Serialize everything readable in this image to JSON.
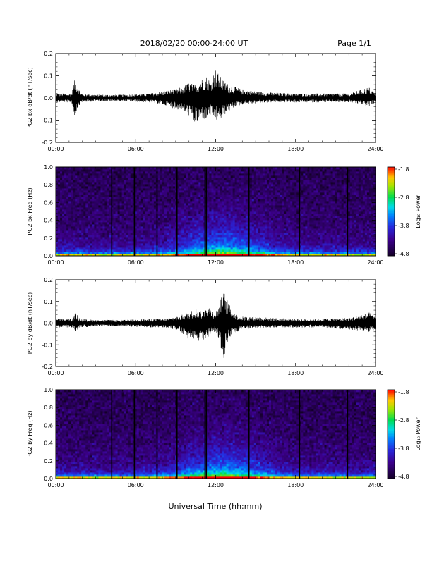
{
  "header": {
    "title": "2018/02/20  00:00-24:00 UT",
    "page": "Page 1/1"
  },
  "x_axis": {
    "label": "Universal Time (hh:mm)",
    "ticks": [
      "00:00",
      "06:00",
      "12:00",
      "18:00",
      "24:00"
    ],
    "range_hours": [
      0,
      24
    ]
  },
  "chart_data": [
    {
      "type": "line",
      "ylabel": "PG2 bx dB/dt (nT/sec)",
      "ylim": [
        -0.2,
        0.2
      ],
      "yticks": [
        "0.2",
        "0.1",
        "0.0",
        "-0.1",
        "-0.2"
      ],
      "x_unit": "hours UT",
      "envelope": {
        "x": [
          0,
          1.2,
          1.4,
          1.6,
          1.9,
          3,
          5,
          7,
          8,
          9,
          9.5,
          10,
          10.5,
          11,
          11.3,
          11.6,
          12,
          12.3,
          12.6,
          13,
          13.5,
          14,
          15,
          16,
          18,
          20,
          22,
          23.5,
          24
        ],
        "upper": [
          0.02,
          0.02,
          0.08,
          0.06,
          0.02,
          0.015,
          0.015,
          0.02,
          0.03,
          0.04,
          0.05,
          0.07,
          0.06,
          0.09,
          0.1,
          0.08,
          0.13,
          0.1,
          0.08,
          0.06,
          0.05,
          0.04,
          0.03,
          0.025,
          0.02,
          0.02,
          0.02,
          0.05,
          0.02
        ],
        "lower": [
          -0.02,
          -0.02,
          -0.09,
          -0.05,
          -0.02,
          -0.015,
          -0.015,
          -0.02,
          -0.03,
          -0.05,
          -0.06,
          -0.08,
          -0.12,
          -0.09,
          -0.11,
          -0.08,
          -0.1,
          -0.12,
          -0.08,
          -0.06,
          -0.04,
          -0.03,
          -0.025,
          -0.02,
          -0.02,
          -0.02,
          -0.02,
          -0.04,
          -0.02
        ]
      }
    },
    {
      "type": "heatmap",
      "ylabel": "PG2 bx Freq (Hz)",
      "ylim": [
        0.0,
        1.0
      ],
      "yticks": [
        "1.0",
        "0.8",
        "0.6",
        "0.4",
        "0.2",
        "0.0"
      ],
      "colorbar": {
        "label": "Log₁₀ Power",
        "ticks": [
          "-1.8",
          "-2.8",
          "-3.8",
          "-4.8"
        ],
        "range": [
          -4.8,
          -1.8
        ]
      },
      "gap_lines_hours": [
        4.2,
        5.9,
        7.6,
        9.1,
        11.2,
        11.3,
        14.5,
        18.3,
        21.9
      ]
    },
    {
      "type": "line",
      "ylabel": "PG2 by dB/dt (nT/sec)",
      "ylim": [
        -0.2,
        0.2
      ],
      "yticks": [
        "0.2",
        "0.1",
        "0.0",
        "-0.1",
        "-0.2"
      ],
      "x_unit": "hours UT",
      "envelope": {
        "x": [
          0,
          1.3,
          1.5,
          1.8,
          3,
          5,
          7,
          8,
          9,
          9.5,
          10,
          10.5,
          11,
          11.3,
          11.6,
          12,
          12.3,
          12.6,
          12.8,
          13.2,
          13.6,
          14,
          15,
          16,
          18,
          20,
          22,
          23.5,
          24
        ],
        "upper": [
          0.02,
          0.02,
          0.05,
          0.02,
          0.015,
          0.015,
          0.02,
          0.02,
          0.03,
          0.04,
          0.05,
          0.07,
          0.05,
          0.09,
          0.07,
          0.05,
          0.1,
          0.15,
          0.12,
          0.06,
          0.04,
          0.03,
          0.03,
          0.025,
          0.02,
          0.02,
          0.025,
          0.05,
          0.03
        ],
        "lower": [
          -0.02,
          -0.02,
          -0.05,
          -0.02,
          -0.015,
          -0.015,
          -0.02,
          -0.02,
          -0.03,
          -0.05,
          -0.08,
          -0.09,
          -0.08,
          -0.09,
          -0.05,
          -0.04,
          -0.08,
          -0.19,
          -0.1,
          -0.06,
          -0.04,
          -0.03,
          -0.025,
          -0.02,
          -0.02,
          -0.02,
          -0.03,
          -0.04,
          -0.03
        ]
      }
    },
    {
      "type": "heatmap",
      "ylabel": "PG2 by Freq (Hz)",
      "ylim": [
        0.0,
        1.0
      ],
      "yticks": [
        "1.0",
        "0.8",
        "0.6",
        "0.4",
        "0.2",
        "0.0"
      ],
      "colorbar": {
        "label": "Log₁₀ Power",
        "ticks": [
          "-1.8",
          "-2.8",
          "-3.8",
          "-4.8"
        ],
        "range": [
          -4.8,
          -1.8
        ]
      },
      "gap_lines_hours": [
        4.2,
        5.9,
        7.6,
        9.1,
        11.2,
        11.3,
        14.5,
        18.3,
        21.9
      ]
    }
  ]
}
